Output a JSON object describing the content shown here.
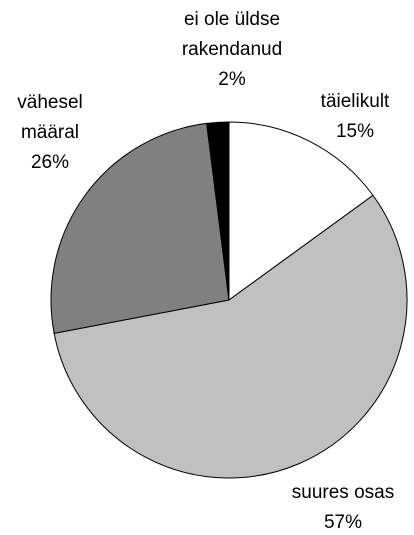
{
  "chart_data": {
    "type": "pie",
    "categories": [
      "täielikult",
      "suures osas",
      "vähesel määral",
      "ei ole üldse rakendanud"
    ],
    "values": [
      15,
      57,
      26,
      2
    ],
    "value_labels": [
      "15%",
      "57%",
      "26%",
      "2%"
    ],
    "colors": [
      "#ffffff",
      "#c0c0c0",
      "#808080",
      "#000000"
    ]
  }
}
